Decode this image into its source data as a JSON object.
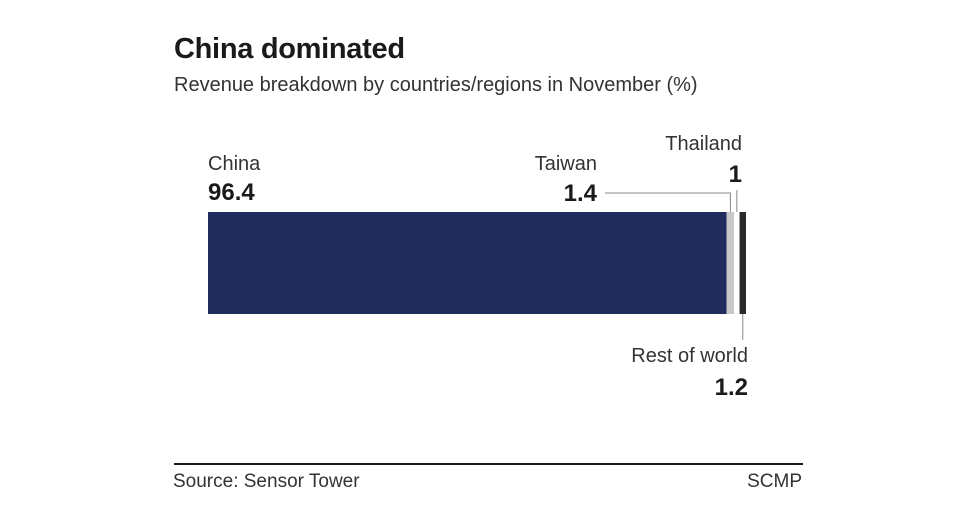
{
  "header": {
    "title": "China dominated",
    "subtitle": "Revenue breakdown by countries/regions in November (%)"
  },
  "footer": {
    "source": "Source: Sensor Tower",
    "brand": "SCMP"
  },
  "chart_data": {
    "type": "bar",
    "orientation": "horizontal-stacked",
    "unit": "%",
    "title": "China dominated",
    "subtitle": "Revenue breakdown by countries/regions in November (%)",
    "xlim": [
      0,
      100
    ],
    "grid": false,
    "legend": "none",
    "categories": [
      "China",
      "Taiwan",
      "Thailand",
      "Rest of world"
    ],
    "series": [
      {
        "label": "China",
        "value": 96.4,
        "value_label": "96.4",
        "color": "#202c5c",
        "label_position": "top-left"
      },
      {
        "label": "Taiwan",
        "value": 1.4,
        "value_label": "1.4",
        "color": "#c8c8c8",
        "label_position": "top-leader"
      },
      {
        "label": "Thailand",
        "value": 1,
        "value_label": "1",
        "color": "#ffffff",
        "label_position": "top-leader"
      },
      {
        "label": "Rest of world",
        "value": 1.2,
        "value_label": "1.2",
        "color": "#2a2a2a",
        "label_position": "bottom-leader"
      }
    ]
  }
}
